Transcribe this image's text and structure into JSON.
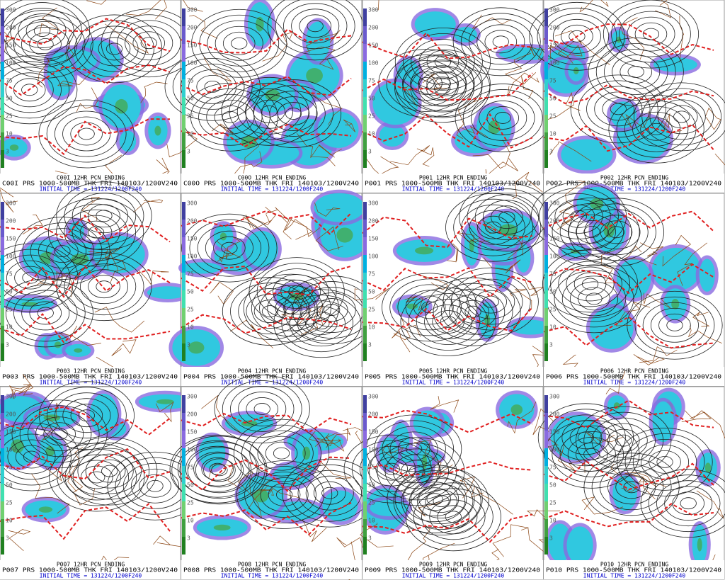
{
  "scale": [
    300,
    200,
    150,
    100,
    75,
    50,
    25,
    10,
    3
  ],
  "panels": [
    {
      "line1": "C00I 12HR PCN ENDING",
      "line2": "C00I PRS 1000-500MB THK FRI 140103/1200V240",
      "line3": "INITIAL TIME = 131224/1200F240"
    },
    {
      "line1": "C00O 12HR PCN ENDING",
      "line2": "C00O PRS 1000-500MB THK FRI 140103/1200V240",
      "line3": "INITIAL TIME = 131224/1200F240"
    },
    {
      "line1": "P001 12HR PCN ENDING",
      "line2": "P001 PRS 1000-500MB THK FRI 140103/1200V240",
      "line3": "INITIAL TIME = 131224/1200F240"
    },
    {
      "line1": "P002 12HR PCN ENDING",
      "line2": "P002 PRS 1000-500MB THK FRI 140103/1200V240",
      "line3": "INITIAL TIME = 131224/1200F240"
    },
    {
      "line1": "P003 12HR PCN ENDING",
      "line2": "P003 PRS 1000-500MB THK FRI 140103/1200V240",
      "line3": "INITIAL TIME = 131224/1200F240"
    },
    {
      "line1": "P004 12HR PCN ENDING",
      "line2": "P004 PRS 1000-500MB THK FRI 140103/1200V240",
      "line3": "INITIAL TIME = 131224/1200F240"
    },
    {
      "line1": "P005 12HR PCN ENDING",
      "line2": "P005 PRS 1000-500MB THK FRI 140103/1200V240",
      "line3": "INITIAL TIME = 131224/1200F240"
    },
    {
      "line1": "P006 12HR PCN ENDING",
      "line2": "P006 PRS 1000-500MB THK FRI 140103/1200V240",
      "line3": "INITIAL TIME = 131224/1200F240"
    },
    {
      "line1": "P007 12HR PCN ENDING",
      "line2": "P007 PRS 1000-500MB THK FRI 140103/1200V240",
      "line3": "INITIAL TIME = 131224/1200F240"
    },
    {
      "line1": "P008 12HR PCN ENDING",
      "line2": "P008 PRS 1000-500MB THK FRI 140103/1200V240",
      "line3": "INITIAL TIME = 131224/1200F240"
    },
    {
      "line1": "P009 12HR PCN ENDING",
      "line2": "P009 PRS 1000-500MB THK FRI 140103/1200V240",
      "line3": "INITIAL TIME = 131224/1200F240"
    },
    {
      "line1": "P010 12HR PCN ENDING",
      "line2": "P010 PRS 1000-500MB THK FRI 140103/1200V240",
      "line3": "INITIAL TIME = 131224/1200F240"
    }
  ]
}
